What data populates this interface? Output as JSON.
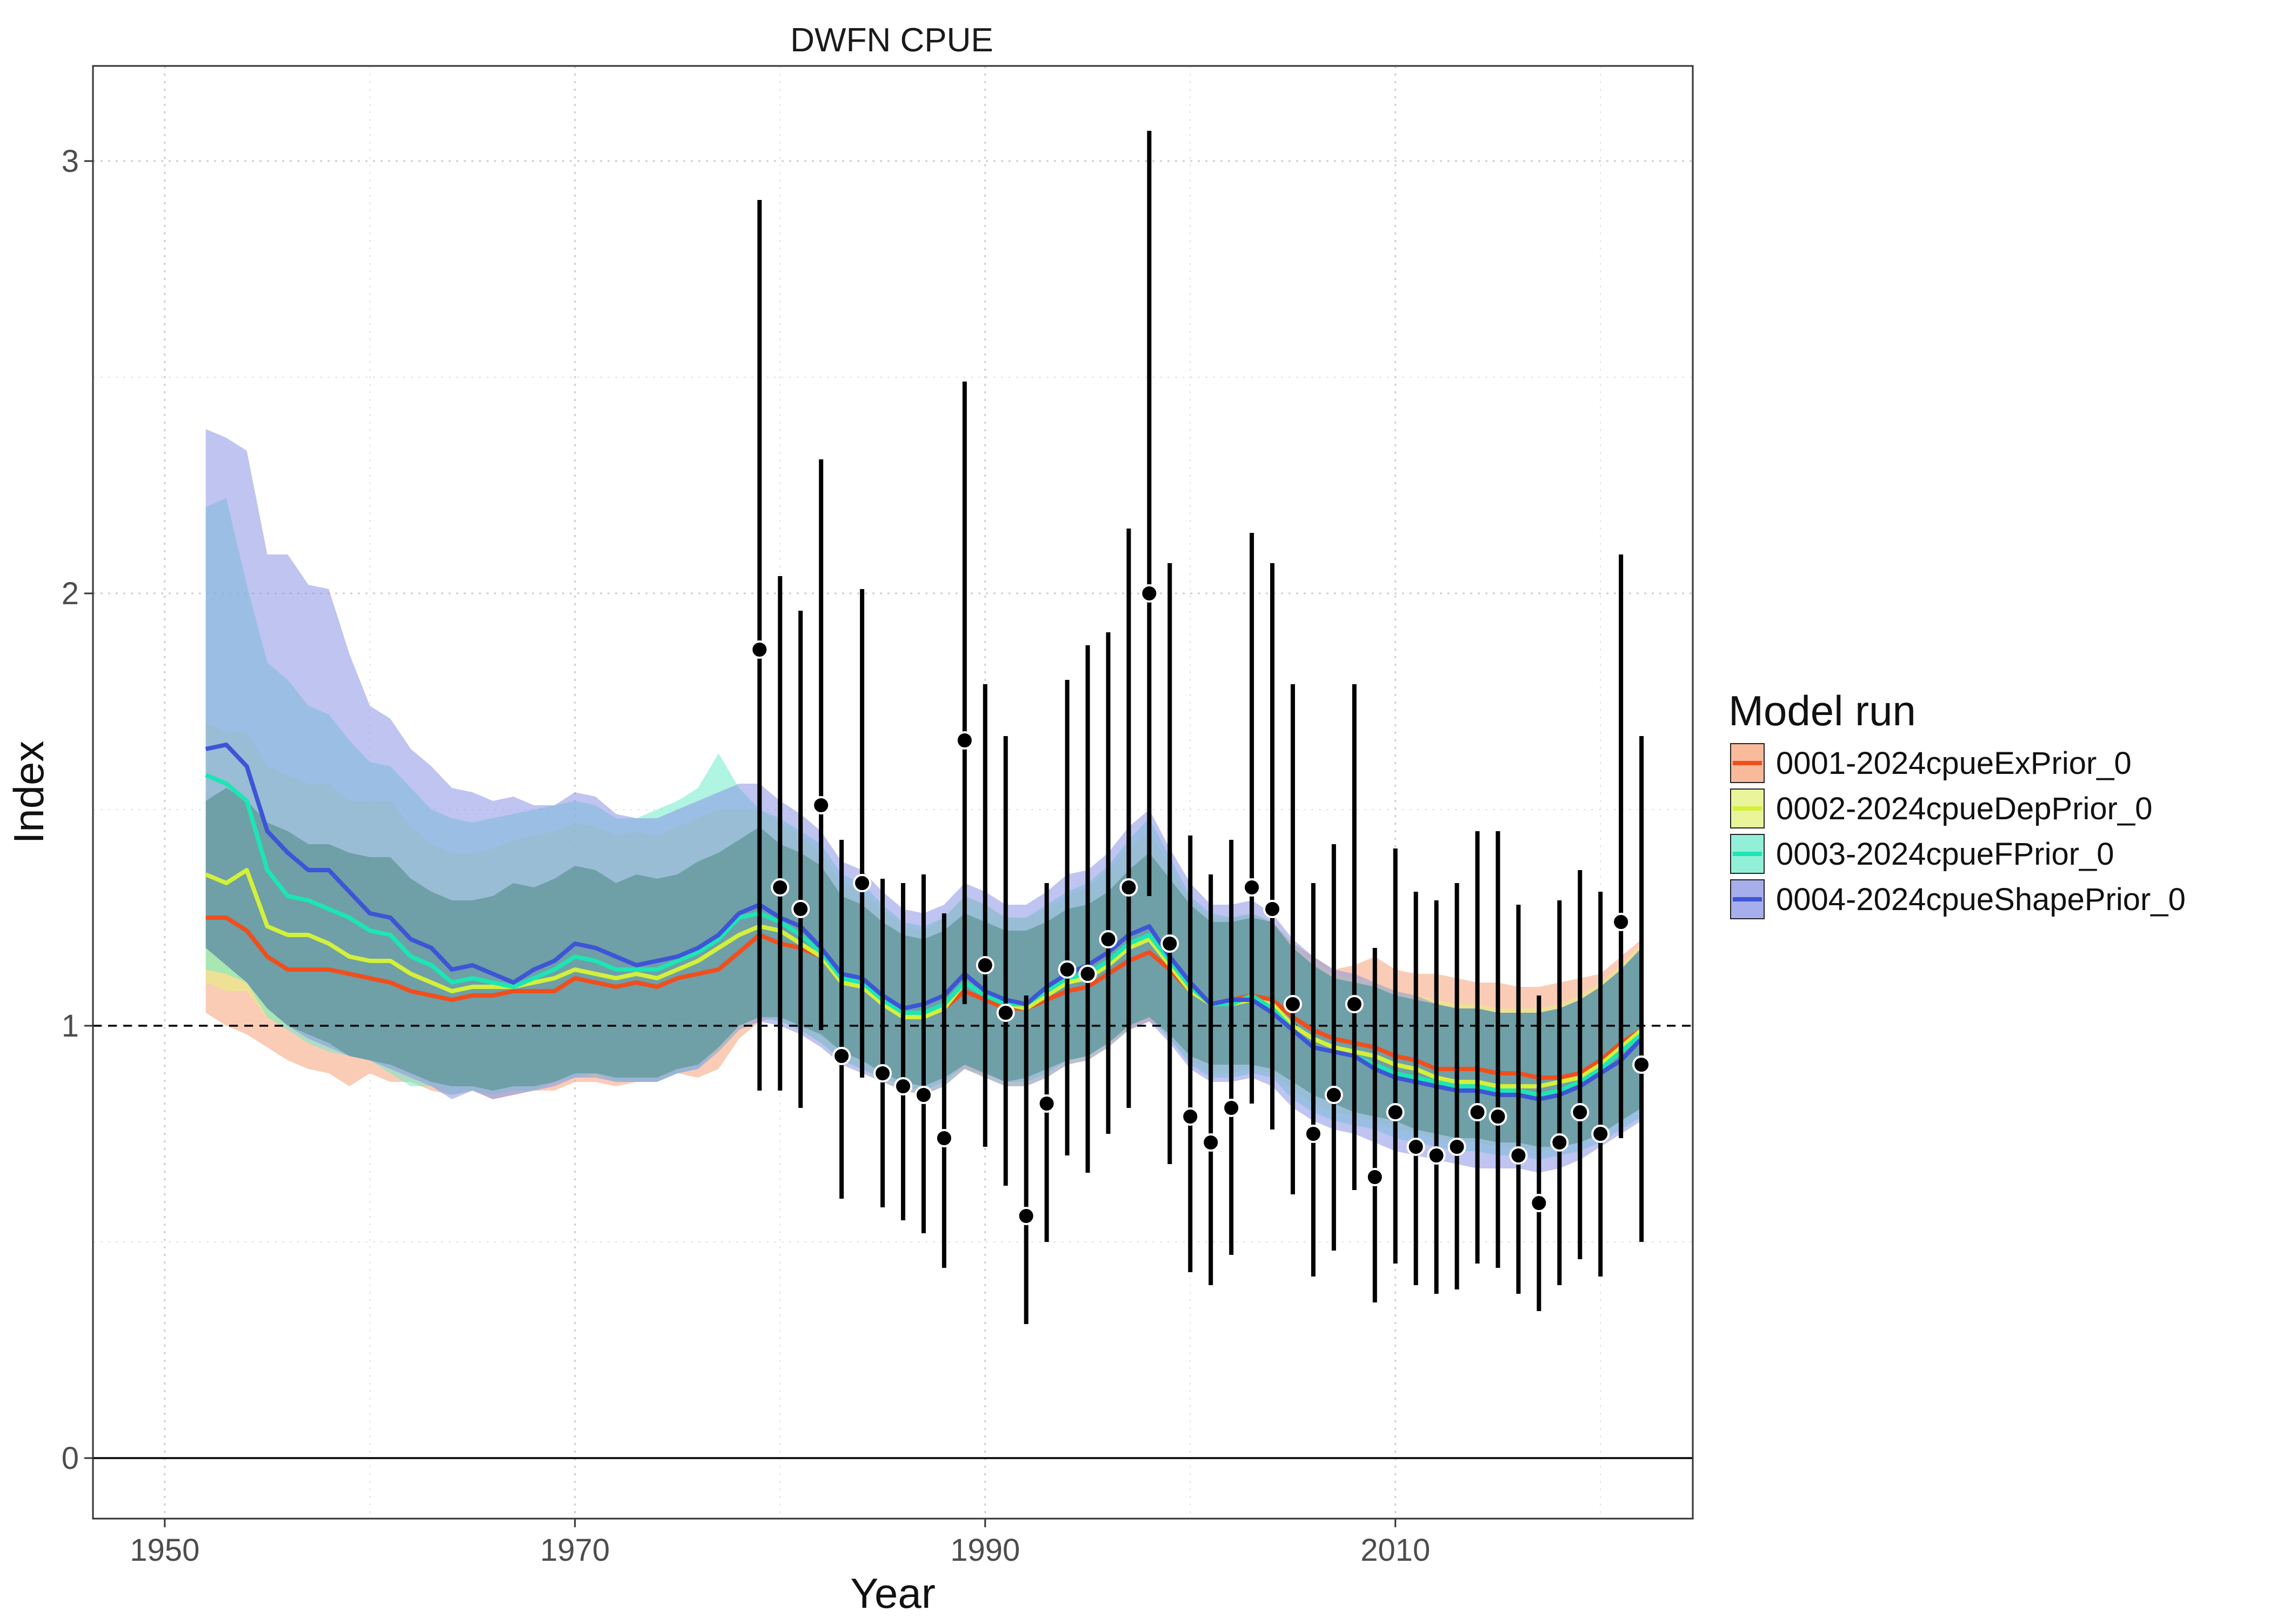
{
  "chart_data": {
    "type": "line",
    "title": "DWFN CPUE",
    "xlabel": "Year",
    "ylabel": "Index",
    "xlim": [
      1946.5,
      2024.5
    ],
    "ylim": [
      -0.14,
      3.22
    ],
    "x_ticks": [
      1950,
      1970,
      1990,
      2010
    ],
    "x_tick_labels": [
      "1950",
      "1970",
      "1990",
      "2010"
    ],
    "y_ticks": [
      0,
      1,
      2,
      3
    ],
    "y_tick_labels": [
      "0",
      "1",
      "2",
      "3"
    ],
    "grid": true,
    "reference_line": 1,
    "zero_line": 0,
    "legend": {
      "title": "Model run",
      "position": "right"
    },
    "years": [
      1952,
      1953,
      1954,
      1955,
      1956,
      1957,
      1958,
      1959,
      1960,
      1961,
      1962,
      1963,
      1964,
      1965,
      1966,
      1967,
      1968,
      1969,
      1970,
      1971,
      1972,
      1973,
      1974,
      1975,
      1976,
      1977,
      1978,
      1979,
      1980,
      1981,
      1982,
      1983,
      1984,
      1985,
      1986,
      1987,
      1988,
      1989,
      1990,
      1991,
      1992,
      1993,
      1994,
      1995,
      1996,
      1997,
      1998,
      1999,
      2000,
      2001,
      2002,
      2003,
      2004,
      2005,
      2006,
      2007,
      2008,
      2009,
      2010,
      2011,
      2012,
      2013,
      2014,
      2015,
      2016,
      2017,
      2018,
      2019,
      2020,
      2021,
      2022
    ],
    "series": [
      {
        "name": "0001-2024cpueExPrior_0",
        "color": "#F04E1C",
        "fill": "#F6A37A",
        "values": [
          1.25,
          1.25,
          1.22,
          1.16,
          1.13,
          1.13,
          1.13,
          1.12,
          1.11,
          1.1,
          1.08,
          1.07,
          1.06,
          1.07,
          1.07,
          1.08,
          1.08,
          1.08,
          1.11,
          1.1,
          1.09,
          1.1,
          1.09,
          1.11,
          1.12,
          1.13,
          1.17,
          1.21,
          1.19,
          1.18,
          1.16,
          1.1,
          1.09,
          1.06,
          1.03,
          1.03,
          1.04,
          1.08,
          1.06,
          1.04,
          1.04,
          1.06,
          1.08,
          1.09,
          1.12,
          1.15,
          1.17,
          1.13,
          1.08,
          1.05,
          1.06,
          1.07,
          1.06,
          1.02,
          0.99,
          0.97,
          0.96,
          0.95,
          0.93,
          0.92,
          0.9,
          0.9,
          0.9,
          0.89,
          0.89,
          0.88,
          0.88,
          0.89,
          0.92,
          0.96,
          0.99
        ],
        "lower": [
          1.03,
          1.0,
          0.98,
          0.95,
          0.92,
          0.9,
          0.89,
          0.86,
          0.89,
          0.87,
          0.87,
          0.85,
          0.84,
          0.85,
          0.83,
          0.84,
          0.85,
          0.85,
          0.87,
          0.87,
          0.86,
          0.87,
          0.87,
          0.89,
          0.88,
          0.9,
          0.97,
          1.01,
          1.02,
          1.0,
          0.98,
          0.94,
          0.92,
          0.89,
          0.87,
          0.86,
          0.88,
          0.9,
          0.89,
          0.87,
          0.88,
          0.9,
          0.92,
          0.93,
          0.96,
          0.99,
          1.01,
          0.98,
          0.93,
          0.91,
          0.91,
          0.91,
          0.9,
          0.87,
          0.84,
          0.82,
          0.8,
          0.79,
          0.78,
          0.76,
          0.75,
          0.74,
          0.74,
          0.73,
          0.73,
          0.72,
          0.72,
          0.73,
          0.75,
          0.78,
          0.81
        ],
        "upper": [
          1.52,
          1.55,
          1.52,
          1.47,
          1.45,
          1.42,
          1.42,
          1.4,
          1.39,
          1.39,
          1.34,
          1.31,
          1.29,
          1.29,
          1.3,
          1.33,
          1.32,
          1.34,
          1.37,
          1.36,
          1.33,
          1.35,
          1.34,
          1.35,
          1.38,
          1.4,
          1.43,
          1.46,
          1.42,
          1.4,
          1.37,
          1.3,
          1.28,
          1.24,
          1.21,
          1.2,
          1.22,
          1.26,
          1.24,
          1.22,
          1.22,
          1.24,
          1.27,
          1.28,
          1.31,
          1.36,
          1.4,
          1.34,
          1.28,
          1.24,
          1.24,
          1.25,
          1.24,
          1.19,
          1.16,
          1.13,
          1.14,
          1.16,
          1.13,
          1.12,
          1.12,
          1.11,
          1.1,
          1.1,
          1.09,
          1.09,
          1.1,
          1.11,
          1.12,
          1.16,
          1.2
        ]
      },
      {
        "name": "0002-2024cpueDepPrior_0",
        "color": "#D3F03A",
        "fill": "#E3F07A",
        "values": [
          1.35,
          1.33,
          1.36,
          1.23,
          1.21,
          1.21,
          1.19,
          1.16,
          1.15,
          1.15,
          1.12,
          1.1,
          1.08,
          1.09,
          1.09,
          1.09,
          1.1,
          1.11,
          1.13,
          1.12,
          1.11,
          1.12,
          1.11,
          1.13,
          1.15,
          1.18,
          1.21,
          1.23,
          1.22,
          1.19,
          1.16,
          1.1,
          1.09,
          1.05,
          1.02,
          1.02,
          1.04,
          1.1,
          1.07,
          1.05,
          1.04,
          1.07,
          1.1,
          1.11,
          1.14,
          1.18,
          1.2,
          1.14,
          1.08,
          1.05,
          1.05,
          1.06,
          1.05,
          1.0,
          0.97,
          0.95,
          0.94,
          0.93,
          0.91,
          0.9,
          0.88,
          0.87,
          0.87,
          0.86,
          0.86,
          0.86,
          0.87,
          0.88,
          0.91,
          0.95,
          0.99
        ],
        "lower": [
          1.1,
          1.08,
          1.08,
          1.02,
          1.0,
          0.98,
          0.96,
          0.93,
          0.92,
          0.91,
          0.89,
          0.87,
          0.86,
          0.86,
          0.85,
          0.86,
          0.86,
          0.87,
          0.89,
          0.88,
          0.88,
          0.88,
          0.88,
          0.9,
          0.91,
          0.94,
          0.99,
          1.02,
          1.01,
          0.99,
          0.96,
          0.92,
          0.9,
          0.87,
          0.85,
          0.84,
          0.86,
          0.9,
          0.88,
          0.86,
          0.86,
          0.88,
          0.91,
          0.92,
          0.95,
          0.99,
          1.02,
          0.97,
          0.92,
          0.89,
          0.89,
          0.9,
          0.89,
          0.85,
          0.82,
          0.8,
          0.79,
          0.78,
          0.76,
          0.75,
          0.74,
          0.73,
          0.73,
          0.72,
          0.72,
          0.71,
          0.72,
          0.73,
          0.75,
          0.78,
          0.81
        ],
        "upper": [
          1.7,
          1.68,
          1.68,
          1.6,
          1.58,
          1.56,
          1.56,
          1.52,
          1.52,
          1.52,
          1.46,
          1.42,
          1.4,
          1.4,
          1.41,
          1.43,
          1.44,
          1.45,
          1.47,
          1.46,
          1.44,
          1.45,
          1.44,
          1.46,
          1.48,
          1.5,
          1.5,
          1.5,
          1.47,
          1.44,
          1.4,
          1.33,
          1.31,
          1.27,
          1.23,
          1.22,
          1.25,
          1.3,
          1.28,
          1.25,
          1.25,
          1.27,
          1.3,
          1.32,
          1.36,
          1.41,
          1.45,
          1.37,
          1.29,
          1.25,
          1.25,
          1.26,
          1.24,
          1.19,
          1.15,
          1.12,
          1.11,
          1.1,
          1.08,
          1.07,
          1.06,
          1.05,
          1.05,
          1.04,
          1.04,
          1.04,
          1.05,
          1.07,
          1.1,
          1.14,
          1.19
        ]
      },
      {
        "name": "0003-2024cpueFPrior_0",
        "color": "#1CE6B4",
        "fill": "#6FEBCB",
        "values": [
          1.58,
          1.56,
          1.52,
          1.36,
          1.3,
          1.29,
          1.27,
          1.25,
          1.22,
          1.21,
          1.16,
          1.14,
          1.1,
          1.11,
          1.1,
          1.09,
          1.11,
          1.13,
          1.16,
          1.15,
          1.13,
          1.13,
          1.13,
          1.15,
          1.17,
          1.2,
          1.25,
          1.26,
          1.24,
          1.21,
          1.17,
          1.11,
          1.1,
          1.06,
          1.03,
          1.03,
          1.05,
          1.1,
          1.07,
          1.05,
          1.05,
          1.08,
          1.11,
          1.12,
          1.15,
          1.19,
          1.21,
          1.15,
          1.09,
          1.05,
          1.05,
          1.07,
          1.04,
          0.99,
          0.95,
          0.94,
          0.93,
          0.91,
          0.89,
          0.88,
          0.87,
          0.86,
          0.86,
          0.85,
          0.85,
          0.84,
          0.85,
          0.87,
          0.9,
          0.94,
          0.98
        ],
        "lower": [
          1.13,
          1.12,
          1.1,
          1.02,
          0.99,
          0.96,
          0.94,
          0.93,
          0.92,
          0.89,
          0.86,
          0.86,
          0.84,
          0.85,
          0.84,
          0.85,
          0.85,
          0.87,
          0.88,
          0.89,
          0.87,
          0.87,
          0.87,
          0.89,
          0.9,
          0.95,
          1.0,
          1.02,
          1.01,
          0.99,
          0.96,
          0.92,
          0.9,
          0.88,
          0.86,
          0.85,
          0.87,
          0.91,
          0.89,
          0.87,
          0.87,
          0.89,
          0.92,
          0.93,
          0.96,
          1.0,
          1.02,
          0.97,
          0.91,
          0.88,
          0.88,
          0.89,
          0.88,
          0.83,
          0.8,
          0.78,
          0.77,
          0.76,
          0.74,
          0.73,
          0.72,
          0.71,
          0.71,
          0.7,
          0.7,
          0.69,
          0.7,
          0.71,
          0.73,
          0.76,
          0.79
        ],
        "upper": [
          2.2,
          2.22,
          2.02,
          1.84,
          1.8,
          1.74,
          1.72,
          1.66,
          1.61,
          1.6,
          1.55,
          1.5,
          1.48,
          1.47,
          1.48,
          1.49,
          1.5,
          1.51,
          1.52,
          1.51,
          1.48,
          1.48,
          1.5,
          1.52,
          1.55,
          1.63,
          1.55,
          1.5,
          1.48,
          1.45,
          1.42,
          1.35,
          1.33,
          1.28,
          1.24,
          1.23,
          1.25,
          1.3,
          1.28,
          1.25,
          1.25,
          1.28,
          1.31,
          1.33,
          1.37,
          1.43,
          1.48,
          1.39,
          1.3,
          1.26,
          1.25,
          1.26,
          1.24,
          1.18,
          1.14,
          1.11,
          1.1,
          1.09,
          1.07,
          1.06,
          1.05,
          1.04,
          1.04,
          1.03,
          1.03,
          1.03,
          1.04,
          1.06,
          1.09,
          1.13,
          1.18
        ]
      },
      {
        "name": "0004-2024cpueShapePrior_0",
        "color": "#3D55D6",
        "fill": "#8A93E6",
        "values": [
          1.64,
          1.65,
          1.6,
          1.45,
          1.4,
          1.36,
          1.36,
          1.31,
          1.26,
          1.25,
          1.2,
          1.18,
          1.13,
          1.14,
          1.12,
          1.1,
          1.13,
          1.15,
          1.19,
          1.18,
          1.16,
          1.14,
          1.15,
          1.16,
          1.18,
          1.21,
          1.26,
          1.28,
          1.25,
          1.23,
          1.18,
          1.12,
          1.11,
          1.07,
          1.04,
          1.05,
          1.07,
          1.12,
          1.08,
          1.06,
          1.05,
          1.09,
          1.12,
          1.14,
          1.17,
          1.21,
          1.23,
          1.16,
          1.1,
          1.05,
          1.06,
          1.06,
          1.03,
          0.99,
          0.95,
          0.94,
          0.93,
          0.9,
          0.88,
          0.87,
          0.86,
          0.85,
          0.85,
          0.84,
          0.84,
          0.83,
          0.84,
          0.86,
          0.89,
          0.92,
          0.97
        ],
        "lower": [
          1.18,
          1.14,
          1.1,
          1.04,
          1.0,
          0.97,
          0.95,
          0.93,
          0.92,
          0.9,
          0.88,
          0.86,
          0.83,
          0.85,
          0.83,
          0.84,
          0.85,
          0.86,
          0.88,
          0.88,
          0.87,
          0.87,
          0.87,
          0.89,
          0.9,
          0.94,
          0.99,
          1.01,
          1.0,
          0.98,
          0.95,
          0.91,
          0.89,
          0.87,
          0.85,
          0.84,
          0.86,
          0.9,
          0.88,
          0.86,
          0.86,
          0.88,
          0.91,
          0.92,
          0.95,
          0.99,
          1.01,
          0.96,
          0.9,
          0.87,
          0.87,
          0.88,
          0.86,
          0.81,
          0.78,
          0.76,
          0.75,
          0.73,
          0.71,
          0.7,
          0.69,
          0.68,
          0.67,
          0.67,
          0.67,
          0.66,
          0.67,
          0.69,
          0.72,
          0.75,
          0.78
        ],
        "upper": [
          2.38,
          2.36,
          2.33,
          2.09,
          2.09,
          2.02,
          2.01,
          1.86,
          1.74,
          1.71,
          1.64,
          1.6,
          1.55,
          1.54,
          1.52,
          1.53,
          1.51,
          1.51,
          1.54,
          1.53,
          1.49,
          1.48,
          1.48,
          1.5,
          1.52,
          1.54,
          1.56,
          1.56,
          1.52,
          1.49,
          1.45,
          1.38,
          1.36,
          1.31,
          1.27,
          1.26,
          1.28,
          1.33,
          1.31,
          1.28,
          1.28,
          1.31,
          1.35,
          1.36,
          1.4,
          1.46,
          1.5,
          1.41,
          1.33,
          1.28,
          1.28,
          1.29,
          1.26,
          1.2,
          1.16,
          1.13,
          1.12,
          1.1,
          1.08,
          1.07,
          1.05,
          1.04,
          1.04,
          1.03,
          1.03,
          1.03,
          1.04,
          1.06,
          1.09,
          1.13,
          1.18
        ]
      }
    ],
    "observed": {
      "x": [
        1979,
        1980,
        1981,
        1982,
        1983,
        1984,
        1985,
        1986,
        1987,
        1988,
        1989,
        1990,
        1991,
        1992,
        1993,
        1994,
        1995,
        1996,
        1997,
        1998,
        1999,
        2000,
        2001,
        2002,
        2003,
        2004,
        2005,
        2006,
        2007,
        2008,
        2009,
        2010,
        2011,
        2012,
        2013,
        2014,
        2015,
        2016,
        2017,
        2018,
        2019,
        2020,
        2021,
        2022
      ],
      "y": [
        1.87,
        1.32,
        1.27,
        1.51,
        0.93,
        1.33,
        0.89,
        0.86,
        0.84,
        0.74,
        1.66,
        1.14,
        1.03,
        0.56,
        0.82,
        1.13,
        1.12,
        1.2,
        1.32,
        2.0,
        1.19,
        0.79,
        0.73,
        0.81,
        1.32,
        1.27,
        1.05,
        0.75,
        0.84,
        1.05,
        0.65,
        0.8,
        0.72,
        0.7,
        0.72,
        0.8,
        0.79,
        0.7,
        0.59,
        0.73,
        0.8,
        0.75,
        1.24,
        0.91
      ],
      "lower": [
        0.85,
        0.85,
        0.81,
        0.99,
        0.6,
        0.88,
        0.58,
        0.55,
        0.52,
        0.44,
        1.05,
        0.72,
        0.63,
        0.31,
        0.5,
        0.7,
        0.66,
        0.75,
        0.81,
        1.3,
        0.68,
        0.43,
        0.4,
        0.47,
        0.82,
        0.76,
        0.61,
        0.42,
        0.48,
        0.62,
        0.36,
        0.45,
        0.4,
        0.38,
        0.39,
        0.45,
        0.44,
        0.38,
        0.34,
        0.4,
        0.46,
        0.42,
        0.74,
        0.5
      ],
      "upper": [
        2.91,
        2.04,
        1.96,
        2.31,
        1.43,
        2.01,
        1.34,
        1.33,
        1.35,
        1.26,
        2.49,
        1.79,
        1.67,
        1.07,
        1.33,
        1.8,
        1.88,
        1.91,
        2.15,
        3.07,
        2.07,
        1.44,
        1.35,
        1.43,
        2.14,
        2.07,
        1.79,
        1.33,
        1.42,
        1.79,
        1.18,
        1.41,
        1.31,
        1.29,
        1.33,
        1.45,
        1.45,
        1.28,
        1.07,
        1.29,
        1.36,
        1.31,
        2.09,
        1.67
      ]
    }
  }
}
